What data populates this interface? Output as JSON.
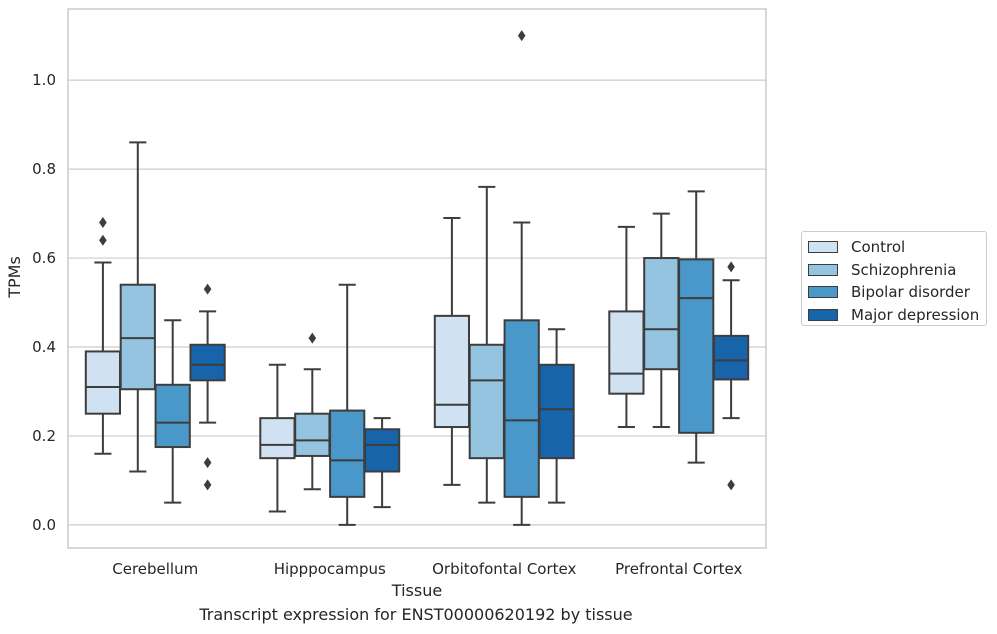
{
  "chart_data": {
    "type": "box",
    "ylabel": "TPMs",
    "xlabel": "Tissue",
    "caption": "Transcript expression for ENST00000620192 by tissue",
    "ylim": [
      -0.052,
      1.16
    ],
    "yticks": [
      "0.0",
      "0.2",
      "0.4",
      "0.6",
      "0.8",
      "1.0"
    ],
    "ytick_values": [
      0.0,
      0.2,
      0.4,
      0.6,
      0.8,
      1.0
    ],
    "grid": true,
    "legend_position": "right",
    "categories": [
      "Cerebellum",
      "Hipppocampus",
      "Orbitofontal Cortex",
      "Prefrontal Cortex"
    ],
    "series": [
      {
        "name": "Control",
        "color": "#d0e1f2",
        "boxes": [
          {
            "whisker_low": 0.16,
            "q1": 0.25,
            "median": 0.31,
            "q3": 0.39,
            "whisker_high": 0.59,
            "outliers": [
              0.64,
              0.68
            ]
          },
          {
            "whisker_low": 0.03,
            "q1": 0.15,
            "median": 0.18,
            "q3": 0.24,
            "whisker_high": 0.36,
            "outliers": []
          },
          {
            "whisker_low": 0.09,
            "q1": 0.22,
            "median": 0.27,
            "q3": 0.47,
            "whisker_high": 0.69,
            "outliers": []
          },
          {
            "whisker_low": 0.22,
            "q1": 0.295,
            "median": 0.34,
            "q3": 0.48,
            "whisker_high": 0.67,
            "outliers": []
          }
        ]
      },
      {
        "name": "Schizophrenia",
        "color": "#94c4df",
        "boxes": [
          {
            "whisker_low": 0.12,
            "q1": 0.305,
            "median": 0.42,
            "q3": 0.54,
            "whisker_high": 0.86,
            "outliers": []
          },
          {
            "whisker_low": 0.08,
            "q1": 0.155,
            "median": 0.19,
            "q3": 0.25,
            "whisker_high": 0.35,
            "outliers": [
              0.42
            ]
          },
          {
            "whisker_low": 0.05,
            "q1": 0.15,
            "median": 0.325,
            "q3": 0.405,
            "whisker_high": 0.76,
            "outliers": []
          },
          {
            "whisker_low": 0.22,
            "q1": 0.35,
            "median": 0.44,
            "q3": 0.6,
            "whisker_high": 0.7,
            "outliers": []
          }
        ]
      },
      {
        "name": "Bipolar disorder",
        "color": "#4a98c9",
        "boxes": [
          {
            "whisker_low": 0.05,
            "q1": 0.175,
            "median": 0.23,
            "q3": 0.315,
            "whisker_high": 0.46,
            "outliers": []
          },
          {
            "whisker_low": 0.0,
            "q1": 0.063,
            "median": 0.145,
            "q3": 0.257,
            "whisker_high": 0.54,
            "outliers": []
          },
          {
            "whisker_low": 0.0,
            "q1": 0.063,
            "median": 0.235,
            "q3": 0.46,
            "whisker_high": 0.68,
            "outliers": [
              1.1
            ]
          },
          {
            "whisker_low": 0.14,
            "q1": 0.207,
            "median": 0.51,
            "q3": 0.597,
            "whisker_high": 0.75,
            "outliers": []
          }
        ]
      },
      {
        "name": "Major depression",
        "color": "#1764ab",
        "boxes": [
          {
            "whisker_low": 0.23,
            "q1": 0.325,
            "median": 0.36,
            "q3": 0.405,
            "whisker_high": 0.48,
            "outliers": [
              0.53,
              0.14,
              0.09
            ]
          },
          {
            "whisker_low": 0.04,
            "q1": 0.12,
            "median": 0.18,
            "q3": 0.215,
            "whisker_high": 0.24,
            "outliers": []
          },
          {
            "whisker_low": 0.05,
            "q1": 0.15,
            "median": 0.26,
            "q3": 0.36,
            "whisker_high": 0.44,
            "outliers": []
          },
          {
            "whisker_low": 0.24,
            "q1": 0.327,
            "median": 0.37,
            "q3": 0.425,
            "whisker_high": 0.55,
            "outliers": [
              0.58,
              0.09
            ]
          }
        ]
      }
    ]
  }
}
